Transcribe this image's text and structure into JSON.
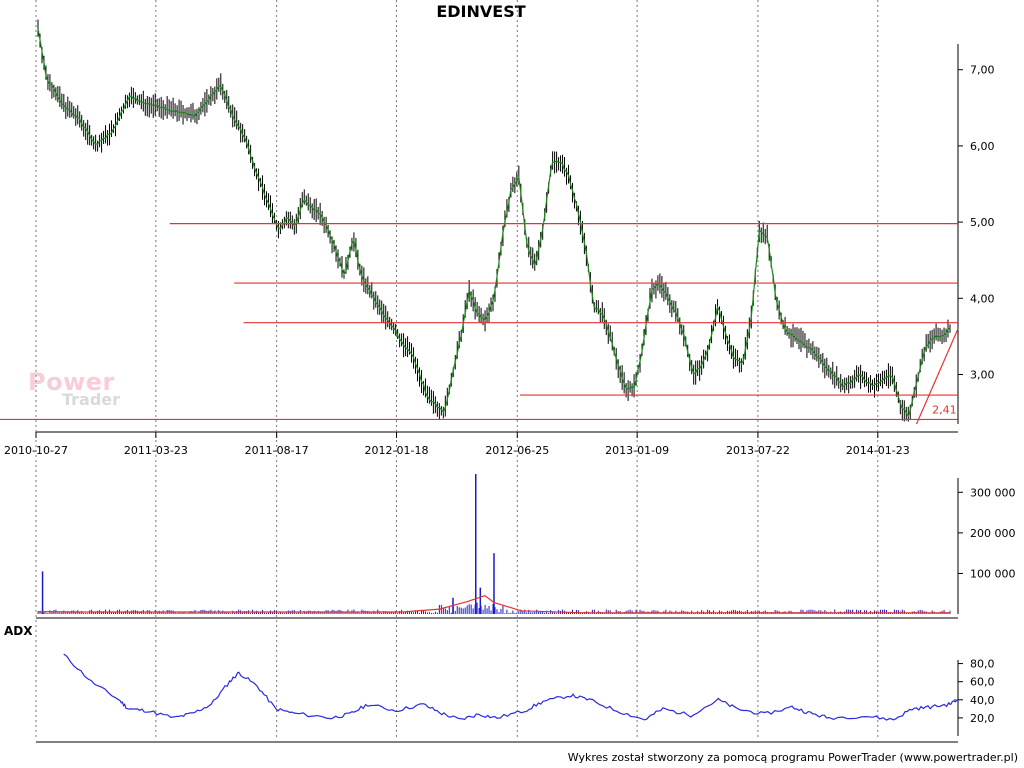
{
  "chart_data": [
    {
      "type": "candlestick",
      "title": "EDINVEST",
      "x_tick_labels": [
        "2010-10-27",
        "2011-03-23",
        "2011-08-17",
        "2012-01-18",
        "2012-06-25",
        "2013-01-09",
        "2013-07-22",
        "2014-01-23"
      ],
      "y_tick_labels": [
        "7,00",
        "6,00",
        "5,00",
        "4,00",
        "3,00"
      ],
      "ylim": [
        2.35,
        7.6
      ],
      "y_ticks": [
        7,
        6,
        5,
        4,
        3
      ],
      "grid": true,
      "price_path": [
        [
          0,
          7.55
        ],
        [
          2,
          6.9
        ],
        [
          6,
          6.55
        ],
        [
          10,
          6.35
        ],
        [
          14,
          6.0
        ],
        [
          18,
          6.2
        ],
        [
          22,
          6.65
        ],
        [
          26,
          6.55
        ],
        [
          30,
          6.5
        ],
        [
          34,
          6.45
        ],
        [
          38,
          6.4
        ],
        [
          41,
          6.6
        ],
        [
          44,
          6.8
        ],
        [
          47,
          6.4
        ],
        [
          50,
          6.1
        ],
        [
          53,
          5.6
        ],
        [
          56,
          5.2
        ],
        [
          58,
          4.9
        ],
        [
          60,
          5.05
        ],
        [
          62,
          4.95
        ],
        [
          64,
          5.3
        ],
        [
          66,
          5.2
        ],
        [
          68,
          5.1
        ],
        [
          70,
          4.9
        ],
        [
          72,
          4.6
        ],
        [
          74,
          4.3
        ],
        [
          76,
          4.8
        ],
        [
          78,
          4.3
        ],
        [
          80,
          4.1
        ],
        [
          82,
          3.9
        ],
        [
          84,
          3.75
        ],
        [
          86,
          3.6
        ],
        [
          88,
          3.4
        ],
        [
          90,
          3.3
        ],
        [
          92,
          3.0
        ],
        [
          94,
          2.7
        ],
        [
          96,
          2.6
        ],
        [
          98,
          2.5
        ],
        [
          100,
          3.0
        ],
        [
          102,
          3.5
        ],
        [
          104,
          4.1
        ],
        [
          106,
          3.8
        ],
        [
          108,
          3.7
        ],
        [
          110,
          4.0
        ],
        [
          112,
          4.8
        ],
        [
          114,
          5.4
        ],
        [
          116,
          5.6
        ],
        [
          118,
          4.7
        ],
        [
          120,
          4.4
        ],
        [
          122,
          5.0
        ],
        [
          124,
          5.8
        ],
        [
          126,
          5.8
        ],
        [
          128,
          5.6
        ],
        [
          130,
          5.2
        ],
        [
          132,
          4.7
        ],
        [
          134,
          3.9
        ],
        [
          136,
          3.8
        ],
        [
          138,
          3.5
        ],
        [
          140,
          3.1
        ],
        [
          142,
          2.8
        ],
        [
          144,
          2.85
        ],
        [
          146,
          3.4
        ],
        [
          148,
          4.1
        ],
        [
          150,
          4.2
        ],
        [
          152,
          4.0
        ],
        [
          154,
          3.8
        ],
        [
          156,
          3.5
        ],
        [
          158,
          3.0
        ],
        [
          160,
          3.1
        ],
        [
          162,
          3.4
        ],
        [
          164,
          3.9
        ],
        [
          166,
          3.5
        ],
        [
          168,
          3.2
        ],
        [
          170,
          3.15
        ],
        [
          172,
          3.7
        ],
        [
          174,
          4.9
        ],
        [
          176,
          4.8
        ],
        [
          178,
          4.0
        ],
        [
          180,
          3.6
        ],
        [
          182,
          3.5
        ],
        [
          184,
          3.45
        ],
        [
          186,
          3.35
        ],
        [
          188,
          3.25
        ],
        [
          190,
          3.1
        ],
        [
          192,
          3.0
        ],
        [
          194,
          2.85
        ],
        [
          196,
          2.9
        ],
        [
          198,
          3.0
        ],
        [
          200,
          2.9
        ],
        [
          202,
          2.85
        ],
        [
          204,
          2.95
        ],
        [
          206,
          3.0
        ],
        [
          208,
          2.6
        ],
        [
          210,
          2.45
        ],
        [
          212,
          2.9
        ],
        [
          214,
          3.35
        ],
        [
          216,
          3.5
        ],
        [
          218,
          3.5
        ],
        [
          220,
          3.6
        ]
      ],
      "moving_average_color": "#1a8a1a",
      "candle_color": "#000000"
    },
    {
      "type": "horizontal_lines",
      "color": "#e63232",
      "levels": [
        {
          "y": 4.98,
          "x_start": 0.145,
          "x_end": 1.0
        },
        {
          "y": 4.2,
          "x_start": 0.215,
          "x_end": 1.0
        },
        {
          "y": 3.68,
          "x_start": 0.225,
          "x_end": 1.0
        },
        {
          "y": 2.73,
          "x_start": 0.525,
          "x_end": 1.0
        },
        {
          "y": 2.41,
          "x_start": 0.0,
          "x_end": 1.0
        }
      ],
      "trendline": {
        "from": [
          0.955,
          2.35
        ],
        "to": [
          1.0,
          3.6
        ]
      },
      "annotation": "2,41"
    },
    {
      "type": "bar",
      "name": "volume",
      "y_tick_labels": [
        "300 000",
        "200 000",
        "100 000"
      ],
      "y_ticks": [
        300000,
        200000,
        100000
      ],
      "ylim": [
        0,
        350000
      ],
      "bar_color": "#1a1acc",
      "average_color": "#e63232",
      "spikes": [
        [
          0.005,
          105000
        ],
        [
          0.48,
          345000
        ],
        [
          0.485,
          65000
        ],
        [
          0.5,
          150000
        ],
        [
          0.455,
          40000
        ]
      ]
    },
    {
      "type": "line",
      "name": "ADX",
      "title": "ADX",
      "y_tick_labels": [
        "80,0",
        "60,0",
        "40,0",
        "20,0"
      ],
      "y_ticks": [
        80,
        60,
        40,
        20
      ],
      "ylim": [
        0,
        95
      ],
      "color": "#2a2ae0",
      "values": [
        [
          0.03,
          90
        ],
        [
          0.06,
          60
        ],
        [
          0.09,
          40
        ],
        [
          0.1,
          30
        ],
        [
          0.12,
          28
        ],
        [
          0.15,
          20
        ],
        [
          0.17,
          25
        ],
        [
          0.19,
          35
        ],
        [
          0.21,
          60
        ],
        [
          0.22,
          70
        ],
        [
          0.24,
          55
        ],
        [
          0.26,
          30
        ],
        [
          0.28,
          25
        ],
        [
          0.32,
          20
        ],
        [
          0.34,
          24
        ],
        [
          0.36,
          35
        ],
        [
          0.39,
          28
        ],
        [
          0.42,
          35
        ],
        [
          0.44,
          25
        ],
        [
          0.46,
          18
        ],
        [
          0.48,
          24
        ],
        [
          0.5,
          20
        ],
        [
          0.53,
          28
        ],
        [
          0.55,
          38
        ],
        [
          0.58,
          45
        ],
        [
          0.6,
          40
        ],
        [
          0.63,
          28
        ],
        [
          0.66,
          18
        ],
        [
          0.68,
          30
        ],
        [
          0.71,
          23
        ],
        [
          0.74,
          40
        ],
        [
          0.76,
          30
        ],
        [
          0.79,
          24
        ],
        [
          0.82,
          32
        ],
        [
          0.84,
          25
        ],
        [
          0.86,
          20
        ],
        [
          0.9,
          22
        ],
        [
          0.93,
          18
        ],
        [
          0.95,
          30
        ],
        [
          0.97,
          32
        ],
        [
          0.99,
          35
        ],
        [
          1.0,
          40
        ]
      ]
    }
  ],
  "labels": {
    "adx_panel": "ADX",
    "footer": "Wykres został stworzony za pomocą programu PowerTrader (www.powertrader.pl)",
    "watermark_line1": "Power",
    "watermark_line2": "Trader",
    "annotation": "2,41"
  }
}
